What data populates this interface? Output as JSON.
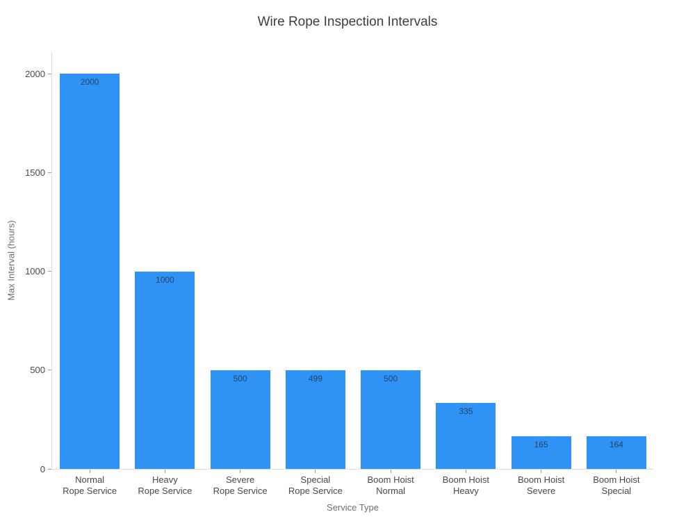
{
  "chart_data": {
    "type": "bar",
    "title": "Wire Rope Inspection Intervals",
    "xlabel": "Service Type",
    "ylabel": "Max Interval (hours)",
    "categories": [
      [
        "Normal",
        "Rope Service"
      ],
      [
        "Heavy",
        "Rope Service"
      ],
      [
        "Severe",
        "Rope Service"
      ],
      [
        "Special",
        "Rope Service"
      ],
      [
        "Boom Hoist",
        "Normal"
      ],
      [
        "Boom Hoist",
        "Heavy"
      ],
      [
        "Boom Hoist",
        "Severe"
      ],
      [
        "Boom Hoist",
        "Special"
      ]
    ],
    "values": [
      2000,
      1000,
      500,
      499,
      500,
      335,
      165,
      164
    ],
    "bar_labels": [
      "2000",
      "1000",
      "500",
      "499",
      "500",
      "335",
      "165",
      "164"
    ],
    "yticks": [
      0,
      500,
      1000,
      1500,
      2000
    ],
    "ylim": [
      0,
      2110
    ],
    "grid": false,
    "legend": "none",
    "bar_color": "#2e93f5",
    "bar_label_color": "#2a3f5f",
    "tick_label_color": "#48484f",
    "axis_title_color": "#6e6e78",
    "axis_line_color": "#dcdce3",
    "background_color": "#ffffff"
  }
}
